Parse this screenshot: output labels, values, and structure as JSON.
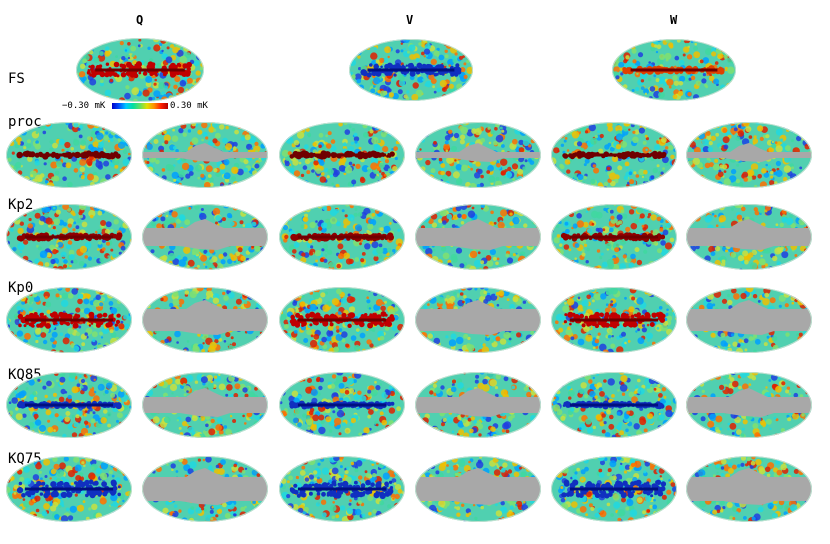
{
  "columns": [
    "Q",
    "V",
    "W"
  ],
  "rows": [
    "FS",
    "proc",
    "Kp2",
    "Kp0",
    "KQ85",
    "KQ75"
  ],
  "colorbar": {
    "min_label": "−0.30 mK",
    "max_label": "0.30 mK"
  },
  "colors": {
    "background": "#ffffff",
    "mask": "#a8a8a8",
    "cmb_low": "#0030d0",
    "cmb_mid": "#40c8a0",
    "cmb_high": "#c00000"
  }
}
